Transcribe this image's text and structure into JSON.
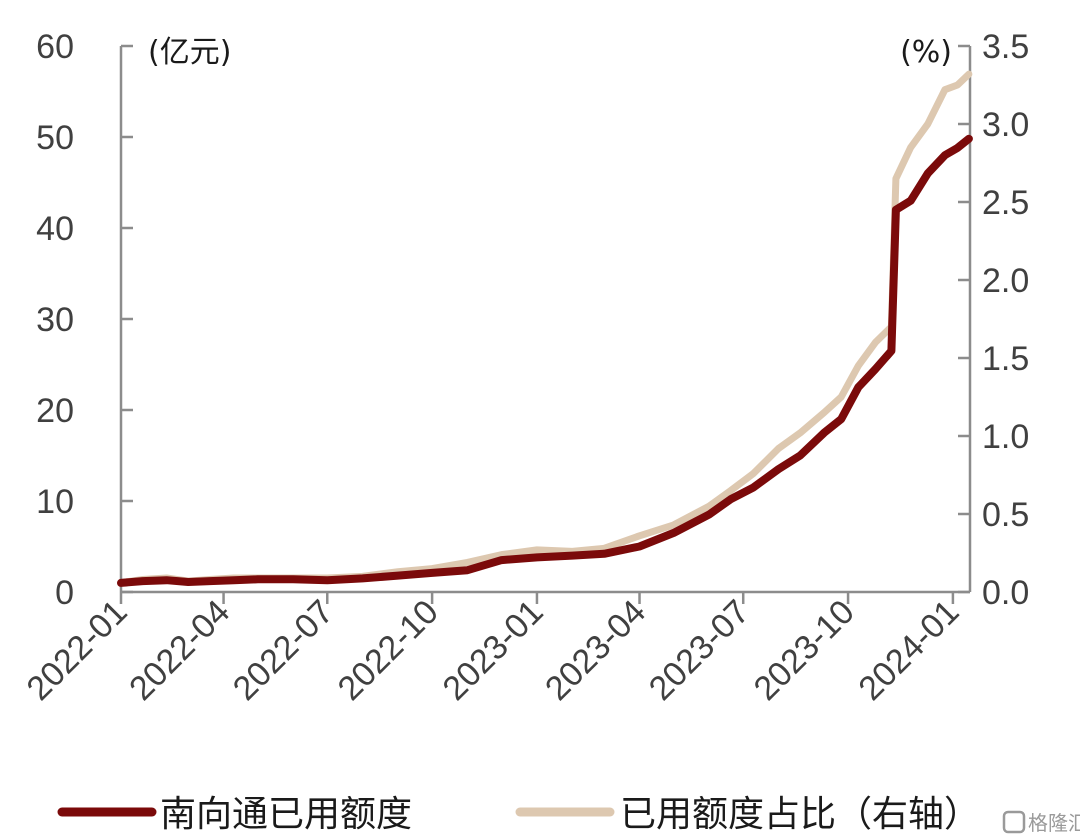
{
  "chart_data": {
    "type": "line",
    "left_axis": {
      "unit_label": "(亿元)",
      "ylim": [
        0,
        60
      ],
      "ticks": [
        0,
        10,
        20,
        30,
        40,
        50,
        60
      ],
      "tick_labels": [
        "0",
        "10",
        "20",
        "30",
        "40",
        "50",
        "60"
      ]
    },
    "right_axis": {
      "unit_label": "(%)",
      "ylim": [
        0,
        3.5
      ],
      "ticks": [
        0,
        0.5,
        1.0,
        1.5,
        2.0,
        2.5,
        3.0,
        3.5
      ],
      "tick_labels": [
        "0.0",
        "0.5",
        "1.0",
        "1.5",
        "2.0",
        "2.5",
        "3.0",
        "3.5"
      ]
    },
    "x_axis": {
      "categories": [
        "2022-01",
        "2022-04",
        "2022-07",
        "2022-10",
        "2023-01",
        "2023-04",
        "2023-07",
        "2023-10",
        "2024-01"
      ]
    },
    "series": [
      {
        "name": "南向通已用额度",
        "axis": "left",
        "color": "#7b0a0a",
        "points": [
          [
            "2022-01-01",
            1.0
          ],
          [
            "2022-01-20",
            1.2
          ],
          [
            "2022-02-10",
            1.3
          ],
          [
            "2022-03-01",
            1.1
          ],
          [
            "2022-03-20",
            1.2
          ],
          [
            "2022-04-10",
            1.3
          ],
          [
            "2022-05-01",
            1.4
          ],
          [
            "2022-06-01",
            1.4
          ],
          [
            "2022-07-01",
            1.3
          ],
          [
            "2022-08-01",
            1.5
          ],
          [
            "2022-09-01",
            1.8
          ],
          [
            "2022-10-01",
            2.1
          ],
          [
            "2022-11-01",
            2.4
          ],
          [
            "2022-12-01",
            3.5
          ],
          [
            "2023-01-01",
            3.8
          ],
          [
            "2023-02-01",
            4.0
          ],
          [
            "2023-03-01",
            4.2
          ],
          [
            "2023-04-01",
            5.0
          ],
          [
            "2023-05-01",
            6.5
          ],
          [
            "2023-06-01",
            8.5
          ],
          [
            "2023-06-20",
            10.2
          ],
          [
            "2023-07-10",
            11.5
          ],
          [
            "2023-08-01",
            13.5
          ],
          [
            "2023-08-20",
            15.0
          ],
          [
            "2023-09-10",
            17.5
          ],
          [
            "2023-09-25",
            19.0
          ],
          [
            "2023-10-10",
            22.5
          ],
          [
            "2023-10-25",
            24.5
          ],
          [
            "2023-11-08",
            26.5
          ],
          [
            "2023-11-12",
            42.0
          ],
          [
            "2023-11-25",
            43.0
          ],
          [
            "2023-12-10",
            46.0
          ],
          [
            "2023-12-25",
            48.0
          ],
          [
            "2024-01-05",
            48.8
          ],
          [
            "2024-01-15",
            49.8
          ]
        ]
      },
      {
        "name": "已用额度占比（右轴）",
        "axis": "right",
        "color": "#ddc8b0",
        "points": [
          [
            "2022-01-01",
            0.06
          ],
          [
            "2022-01-20",
            0.08
          ],
          [
            "2022-02-10",
            0.09
          ],
          [
            "2022-03-01",
            0.07
          ],
          [
            "2022-03-20",
            0.08
          ],
          [
            "2022-04-10",
            0.09
          ],
          [
            "2022-05-01",
            0.09
          ],
          [
            "2022-06-01",
            0.09
          ],
          [
            "2022-07-01",
            0.09
          ],
          [
            "2022-08-01",
            0.1
          ],
          [
            "2022-09-01",
            0.13
          ],
          [
            "2022-10-01",
            0.15
          ],
          [
            "2022-11-01",
            0.19
          ],
          [
            "2022-12-01",
            0.24
          ],
          [
            "2023-01-01",
            0.27
          ],
          [
            "2023-02-01",
            0.26
          ],
          [
            "2023-03-01",
            0.28
          ],
          [
            "2023-04-01",
            0.36
          ],
          [
            "2023-05-01",
            0.43
          ],
          [
            "2023-06-01",
            0.55
          ],
          [
            "2023-06-20",
            0.65
          ],
          [
            "2023-07-10",
            0.76
          ],
          [
            "2023-08-01",
            0.92
          ],
          [
            "2023-08-20",
            1.02
          ],
          [
            "2023-09-10",
            1.15
          ],
          [
            "2023-09-25",
            1.25
          ],
          [
            "2023-10-10",
            1.45
          ],
          [
            "2023-10-25",
            1.6
          ],
          [
            "2023-11-08",
            1.7
          ],
          [
            "2023-11-12",
            2.65
          ],
          [
            "2023-11-25",
            2.85
          ],
          [
            "2023-12-10",
            3.0
          ],
          [
            "2023-12-25",
            3.22
          ],
          [
            "2024-01-05",
            3.25
          ],
          [
            "2024-01-15",
            3.32
          ]
        ]
      }
    ],
    "legend_position": "bottom",
    "grid": false
  },
  "watermark": {
    "text": "格隆汇"
  }
}
